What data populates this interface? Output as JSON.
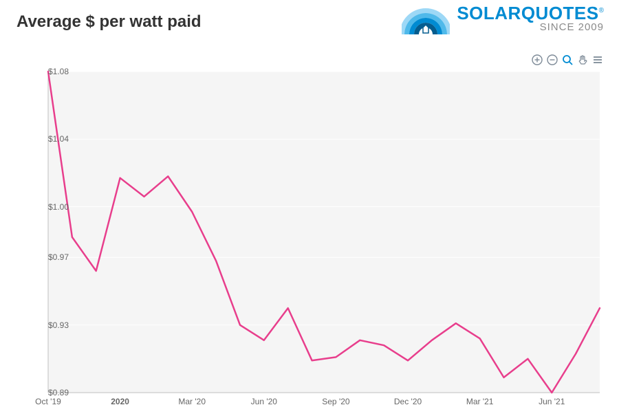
{
  "title": {
    "text": "Average $ per watt paid",
    "fontsize": 24,
    "color": "#333333"
  },
  "logo": {
    "brand": "SOLARQUOTES",
    "brand_color": "#008bd2",
    "brand_fontsize": 26,
    "registered_symbol": "®",
    "since_text": "SINCE 2009",
    "since_color": "#8a8a8a",
    "since_fontsize": 15,
    "arc_colors": [
      "#9dd8f6",
      "#4fb9ea",
      "#008bd2",
      "#045d8f"
    ]
  },
  "toolbar": {
    "icon_color_inactive": "#7d8a97",
    "icon_color_active": "#008bd2",
    "items": [
      {
        "name": "zoom-in-icon",
        "active": false,
        "svg": "plus-circle"
      },
      {
        "name": "zoom-out-icon",
        "active": false,
        "svg": "minus-circle"
      },
      {
        "name": "zoom-select-icon",
        "active": true,
        "svg": "search"
      },
      {
        "name": "pan-icon",
        "active": false,
        "svg": "hand"
      },
      {
        "name": "menu-icon",
        "active": false,
        "svg": "menu"
      }
    ]
  },
  "chart": {
    "type": "line",
    "plot_background": "#f5f5f5",
    "page_background": "#ffffff",
    "grid_color": "#ffffff",
    "grid_width": 1,
    "axis_line_color": "#bfbfbf",
    "axis_line_width": 1,
    "tick_label_color": "#666666",
    "tick_label_fontsize": 12,
    "line_color": "#e83e8c",
    "line_width": 2.5,
    "y": {
      "min": 0.89,
      "max": 1.08,
      "ticks": [
        0.89,
        0.93,
        0.97,
        1.0,
        1.04,
        1.08
      ],
      "tick_labels": [
        "$0.89",
        "$0.93",
        "$0.97",
        "$1.00",
        "$1.04",
        "$1.08"
      ]
    },
    "x": {
      "ticks_idx": [
        0,
        3,
        6,
        9,
        12,
        15,
        18,
        21
      ],
      "tick_labels": [
        "Oct '19",
        "2020",
        "Mar '20",
        "Jun '20",
        "Sep '20",
        "Dec '20",
        "Mar '21",
        "Jun '21"
      ],
      "tick_bold_idx": [
        1
      ]
    },
    "series": {
      "values": [
        1.08,
        0.982,
        0.962,
        1.017,
        1.006,
        1.018,
        0.997,
        0.968,
        0.93,
        0.921,
        0.94,
        0.909,
        0.911,
        0.921,
        0.918,
        0.909,
        0.921,
        0.931,
        0.922,
        0.899,
        0.91,
        0.89,
        0.913,
        0.94
      ]
    }
  }
}
